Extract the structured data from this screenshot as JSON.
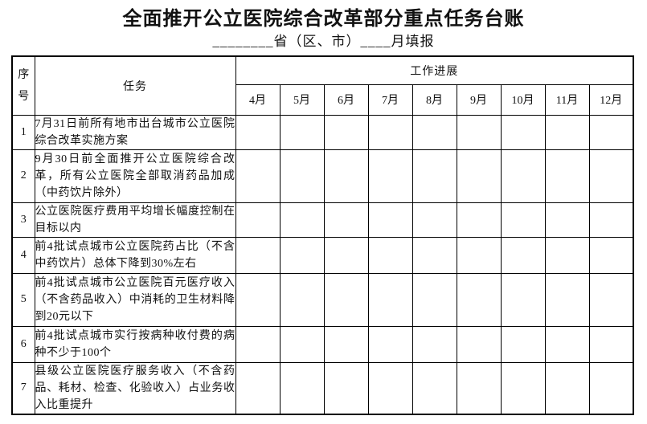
{
  "title": "全面推开公立医院综合改革部分重点任务台账",
  "subtitle": "________省（区、市）____月填报",
  "colors": {
    "text": "#111111",
    "border": "#000000",
    "background": "#ffffff"
  },
  "table": {
    "col_no_header": "序号",
    "task_header": "任务",
    "progress_header": "工作进展",
    "months": [
      "4月",
      "5月",
      "6月",
      "7月",
      "8月",
      "9月",
      "10月",
      "11月",
      "12月"
    ],
    "rows": [
      {
        "no": "1",
        "task": "7月31日前所有地市出台城市公立医院综合改革实施方案"
      },
      {
        "no": "2",
        "task": "9月30日前全面推开公立医院综合改革，所有公立医院全部取消药品加成（中药饮片除外）"
      },
      {
        "no": "3",
        "task": "公立医院医疗费用平均增长幅度控制在目标以内"
      },
      {
        "no": "4",
        "task": "前4批试点城市公立医院药占比（不含中药饮片）总体下降到30%左右"
      },
      {
        "no": "5",
        "task": "前4批试点城市公立医院百元医疗收入（不含药品收入）中消耗的卫生材料降到20元以下"
      },
      {
        "no": "6",
        "task": "前4批试点城市实行按病种收付费的病种不少于100个"
      },
      {
        "no": "7",
        "task": "县级公立医院医疗服务收入（不含药品、耗材、检查、化验收入）占业务收入比重提升"
      }
    ]
  }
}
